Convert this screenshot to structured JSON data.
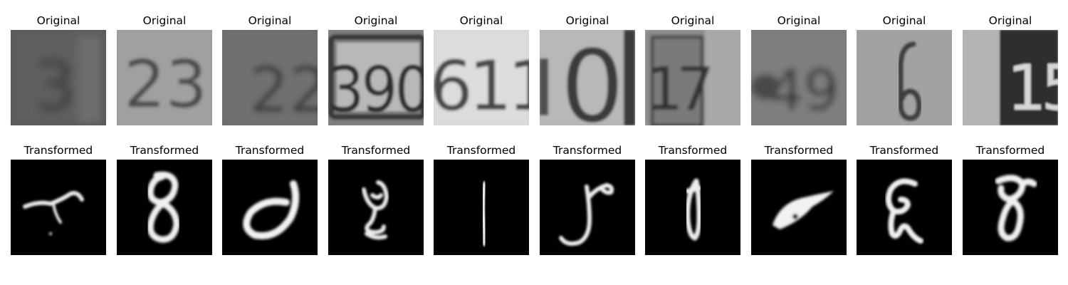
{
  "panels": [
    {
      "title": "Original",
      "row": "original",
      "digits": "3",
      "tone": "dark-blur"
    },
    {
      "title": "Original",
      "row": "original",
      "digits": "23",
      "tone": "light-gray"
    },
    {
      "title": "Original",
      "row": "original",
      "digits": "22",
      "tone": "mid-gray"
    },
    {
      "title": "Original",
      "row": "original",
      "digits": "390",
      "tone": "plate"
    },
    {
      "title": "Original",
      "row": "original",
      "digits": "611",
      "tone": "bright"
    },
    {
      "title": "Original",
      "row": "original",
      "digits": "0",
      "tone": "light-frame"
    },
    {
      "title": "Original",
      "row": "original",
      "digits": "17",
      "tone": "split"
    },
    {
      "title": "Original",
      "row": "original",
      "digits": "49",
      "tone": "dark-blur"
    },
    {
      "title": "Original",
      "row": "original",
      "digits": "6",
      "tone": "flat-gray"
    },
    {
      "title": "Original",
      "row": "original",
      "digits": "15",
      "tone": "plate-dark"
    },
    {
      "title": "Transformed",
      "row": "transformed"
    },
    {
      "title": "Transformed",
      "row": "transformed"
    },
    {
      "title": "Transformed",
      "row": "transformed"
    },
    {
      "title": "Transformed",
      "row": "transformed"
    },
    {
      "title": "Transformed",
      "row": "transformed"
    },
    {
      "title": "Transformed",
      "row": "transformed"
    },
    {
      "title": "Transformed",
      "row": "transformed"
    },
    {
      "title": "Transformed",
      "row": "transformed"
    },
    {
      "title": "Transformed",
      "row": "transformed"
    },
    {
      "title": "Transformed",
      "row": "transformed"
    }
  ]
}
